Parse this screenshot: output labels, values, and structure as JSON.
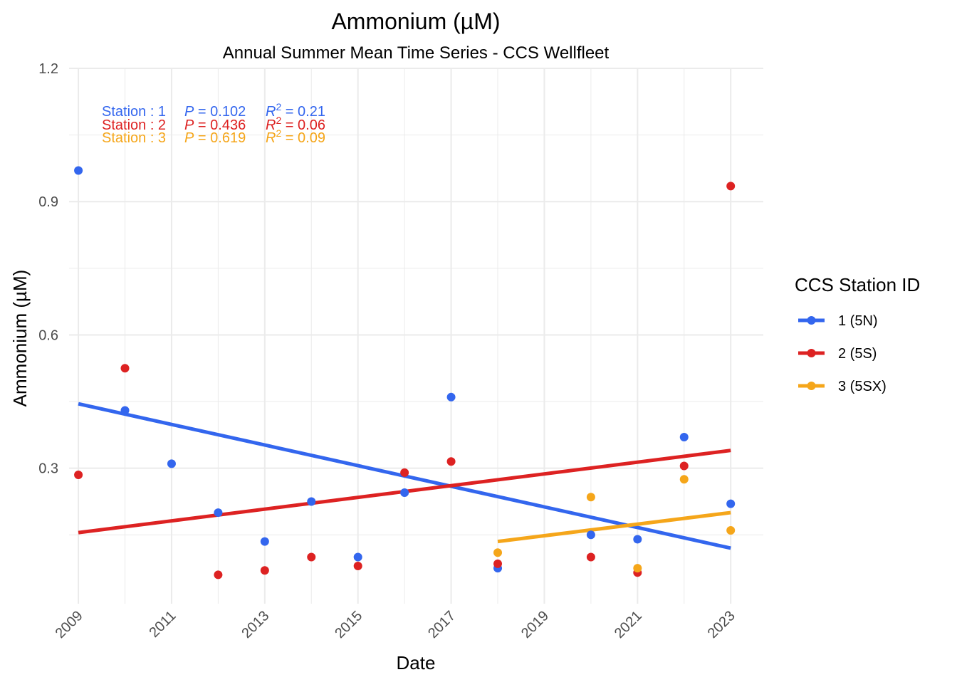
{
  "chart_data": {
    "type": "scatter",
    "title": "Ammonium (µM)",
    "subtitle": "Annual Summer Mean Time Series - CCS Wellfleet",
    "xlabel": "Date",
    "ylabel": "Ammonium (µM)",
    "xlim": [
      2008.8,
      2023.7
    ],
    "ylim": [
      -0.005,
      1.2
    ],
    "x_ticks": [
      "2009",
      "2011",
      "2013",
      "2015",
      "2017",
      "2019",
      "2021",
      "2023"
    ],
    "y_ticks": [
      "0.3",
      "0.6",
      "0.9",
      "1.2"
    ],
    "grid": true,
    "legend": {
      "title": "CCS Station ID",
      "position": "right"
    },
    "series": [
      {
        "name": "1 (5N)",
        "color": "#3366EE",
        "x": [
          2009,
          2010,
          2011,
          2012,
          2013,
          2014,
          2015,
          2016,
          2017,
          2018,
          2020,
          2021,
          2022,
          2023
        ],
        "y": [
          0.97,
          0.43,
          0.31,
          0.2,
          0.135,
          0.225,
          0.1,
          0.245,
          0.46,
          0.075,
          0.15,
          0.14,
          0.37,
          0.22
        ],
        "trend": [
          [
            2009,
            0.445
          ],
          [
            2023,
            0.12
          ]
        ],
        "annotation": {
          "station": "Station : 1",
          "p": "P = 0.102",
          "r2": "R2 = 0.21"
        }
      },
      {
        "name": "2 (5S)",
        "color": "#DD2222",
        "x": [
          2009,
          2010,
          2012,
          2013,
          2014,
          2015,
          2016,
          2017,
          2018,
          2020,
          2021,
          2022,
          2023
        ],
        "y": [
          0.285,
          0.525,
          0.06,
          0.07,
          0.1,
          0.08,
          0.29,
          0.315,
          0.085,
          0.1,
          0.065,
          0.305,
          0.935
        ],
        "trend": [
          [
            2009,
            0.155
          ],
          [
            2023,
            0.34
          ]
        ],
        "annotation": {
          "station": "Station : 2",
          "p": "P = 0.436",
          "r2": "R2 = 0.06"
        }
      },
      {
        "name": "3 (5SX)",
        "color": "#F5A61A",
        "x": [
          2018,
          2020,
          2021,
          2022,
          2023
        ],
        "y": [
          0.11,
          0.235,
          0.075,
          0.275,
          0.16
        ],
        "trend": [
          [
            2018,
            0.135
          ],
          [
            2023,
            0.2
          ]
        ],
        "annotation": {
          "station": "Station : 3",
          "p": "P = 0.619",
          "r2": "R2 = 0.09"
        }
      }
    ]
  }
}
